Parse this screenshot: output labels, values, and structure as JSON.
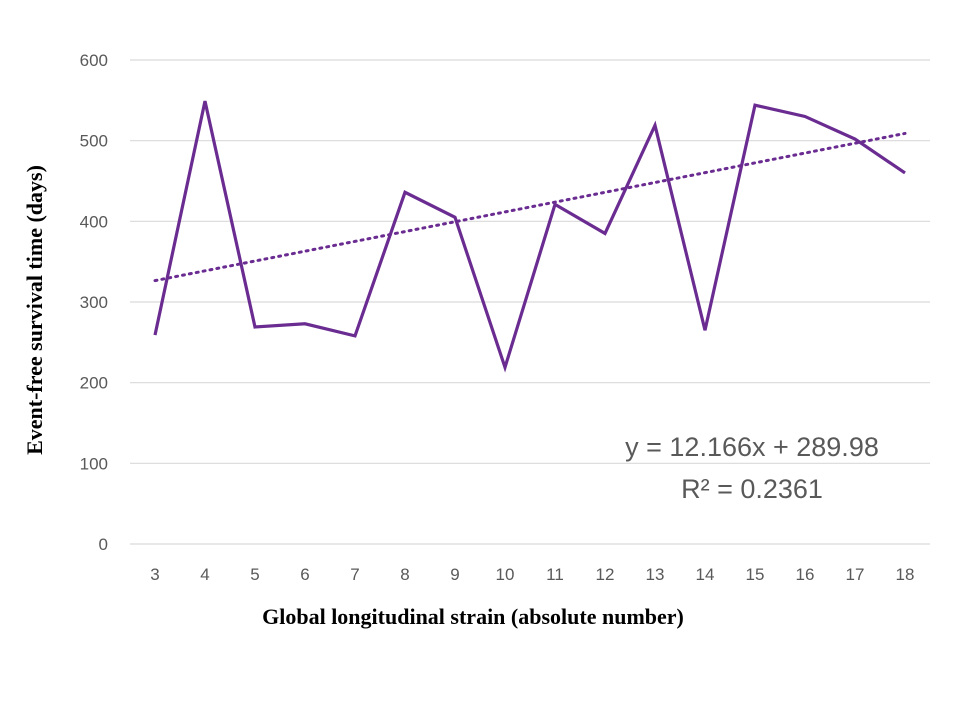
{
  "chart_data": {
    "type": "line",
    "title": "",
    "xlabel": "Global longitudinal strain (absolute number)",
    "ylabel": "Event-free survival time (days)",
    "x": [
      3,
      4,
      5,
      6,
      7,
      8,
      9,
      10,
      11,
      12,
      13,
      14,
      15,
      16,
      17,
      18
    ],
    "values": [
      259,
      549,
      269,
      273,
      258,
      436,
      405,
      219,
      421,
      385,
      519,
      265,
      544,
      530,
      502,
      460
    ],
    "ylim": [
      0,
      600
    ],
    "yticks": [
      0,
      100,
      200,
      300,
      400,
      500,
      600
    ],
    "grid": true,
    "line_color": "#6a2c91",
    "trendline": {
      "type": "linear",
      "slope": 12.166,
      "intercept": 289.98,
      "style": "dotted"
    },
    "equation_label": "y = 12.166x + 289.98",
    "r2_label": "R² = 0.2361"
  }
}
